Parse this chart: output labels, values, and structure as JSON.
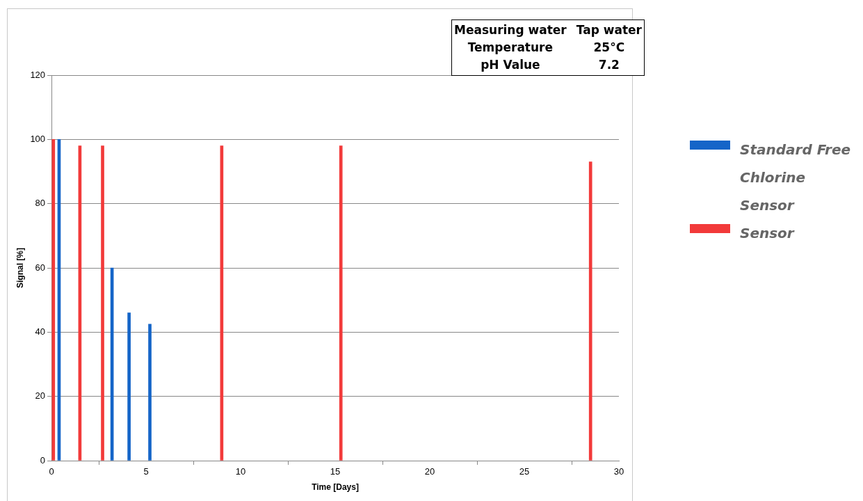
{
  "chart_data": {
    "type": "bar",
    "xlabel": "Time [Days]",
    "ylabel": "Signal [%]",
    "xlim": [
      0,
      30
    ],
    "xticks": [
      0,
      5,
      10,
      15,
      20,
      25,
      30
    ],
    "ylim": [
      0,
      120
    ],
    "yticks": [
      0,
      20,
      40,
      60,
      80,
      100,
      120
    ],
    "grid": "y",
    "legend": "right",
    "annotations": [
      "Measuring water",
      "Tap water",
      "Temperature",
      "25°C",
      "pH Value",
      "7.2"
    ],
    "series": [
      {
        "name": "Standard Free Chlorine Sensor",
        "color": "#1565c8",
        "x": [
          0.4,
          3.2,
          4.1,
          5.2
        ],
        "values": [
          100,
          60,
          46,
          42.5
        ]
      },
      {
        "name": "Sensor",
        "color": "#f23a3a",
        "x": [
          0.1,
          1.5,
          2.7,
          9.0,
          15.3,
          28.5
        ],
        "values": [
          100,
          98,
          98,
          98,
          98,
          93
        ]
      }
    ]
  }
}
